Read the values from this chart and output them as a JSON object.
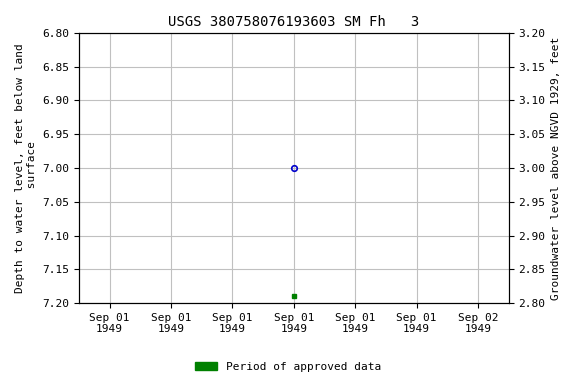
{
  "title": "USGS 380758076193603 SM Fh   3",
  "ylabel_left": "Depth to water level, feet below land\n surface",
  "ylabel_right": "Groundwater level above NGVD 1929, feet",
  "ylim_left": [
    6.8,
    7.2
  ],
  "ylim_right": [
    2.8,
    3.2
  ],
  "yticks_left": [
    6.8,
    6.85,
    6.9,
    6.95,
    7.0,
    7.05,
    7.1,
    7.15,
    7.2
  ],
  "yticks_right": [
    2.8,
    2.85,
    2.9,
    2.95,
    3.0,
    3.05,
    3.1,
    3.15,
    3.2
  ],
  "data_point_blue_value": 7.0,
  "data_point_green_value": 7.19,
  "background_color": "#ffffff",
  "grid_color": "#c0c0c0",
  "title_fontsize": 10,
  "axis_label_fontsize": 8,
  "tick_fontsize": 8,
  "blue_marker_color": "#0000cc",
  "green_marker_color": "#008000",
  "legend_label": "Period of approved data",
  "x_tick_labels": [
    "Sep 01\n1949",
    "Sep 01\n1949",
    "Sep 01\n1949",
    "Sep 01\n1949",
    "Sep 01\n1949",
    "Sep 01\n1949",
    "Sep 02\n1949"
  ],
  "n_ticks": 7,
  "data_tick_index": 3
}
